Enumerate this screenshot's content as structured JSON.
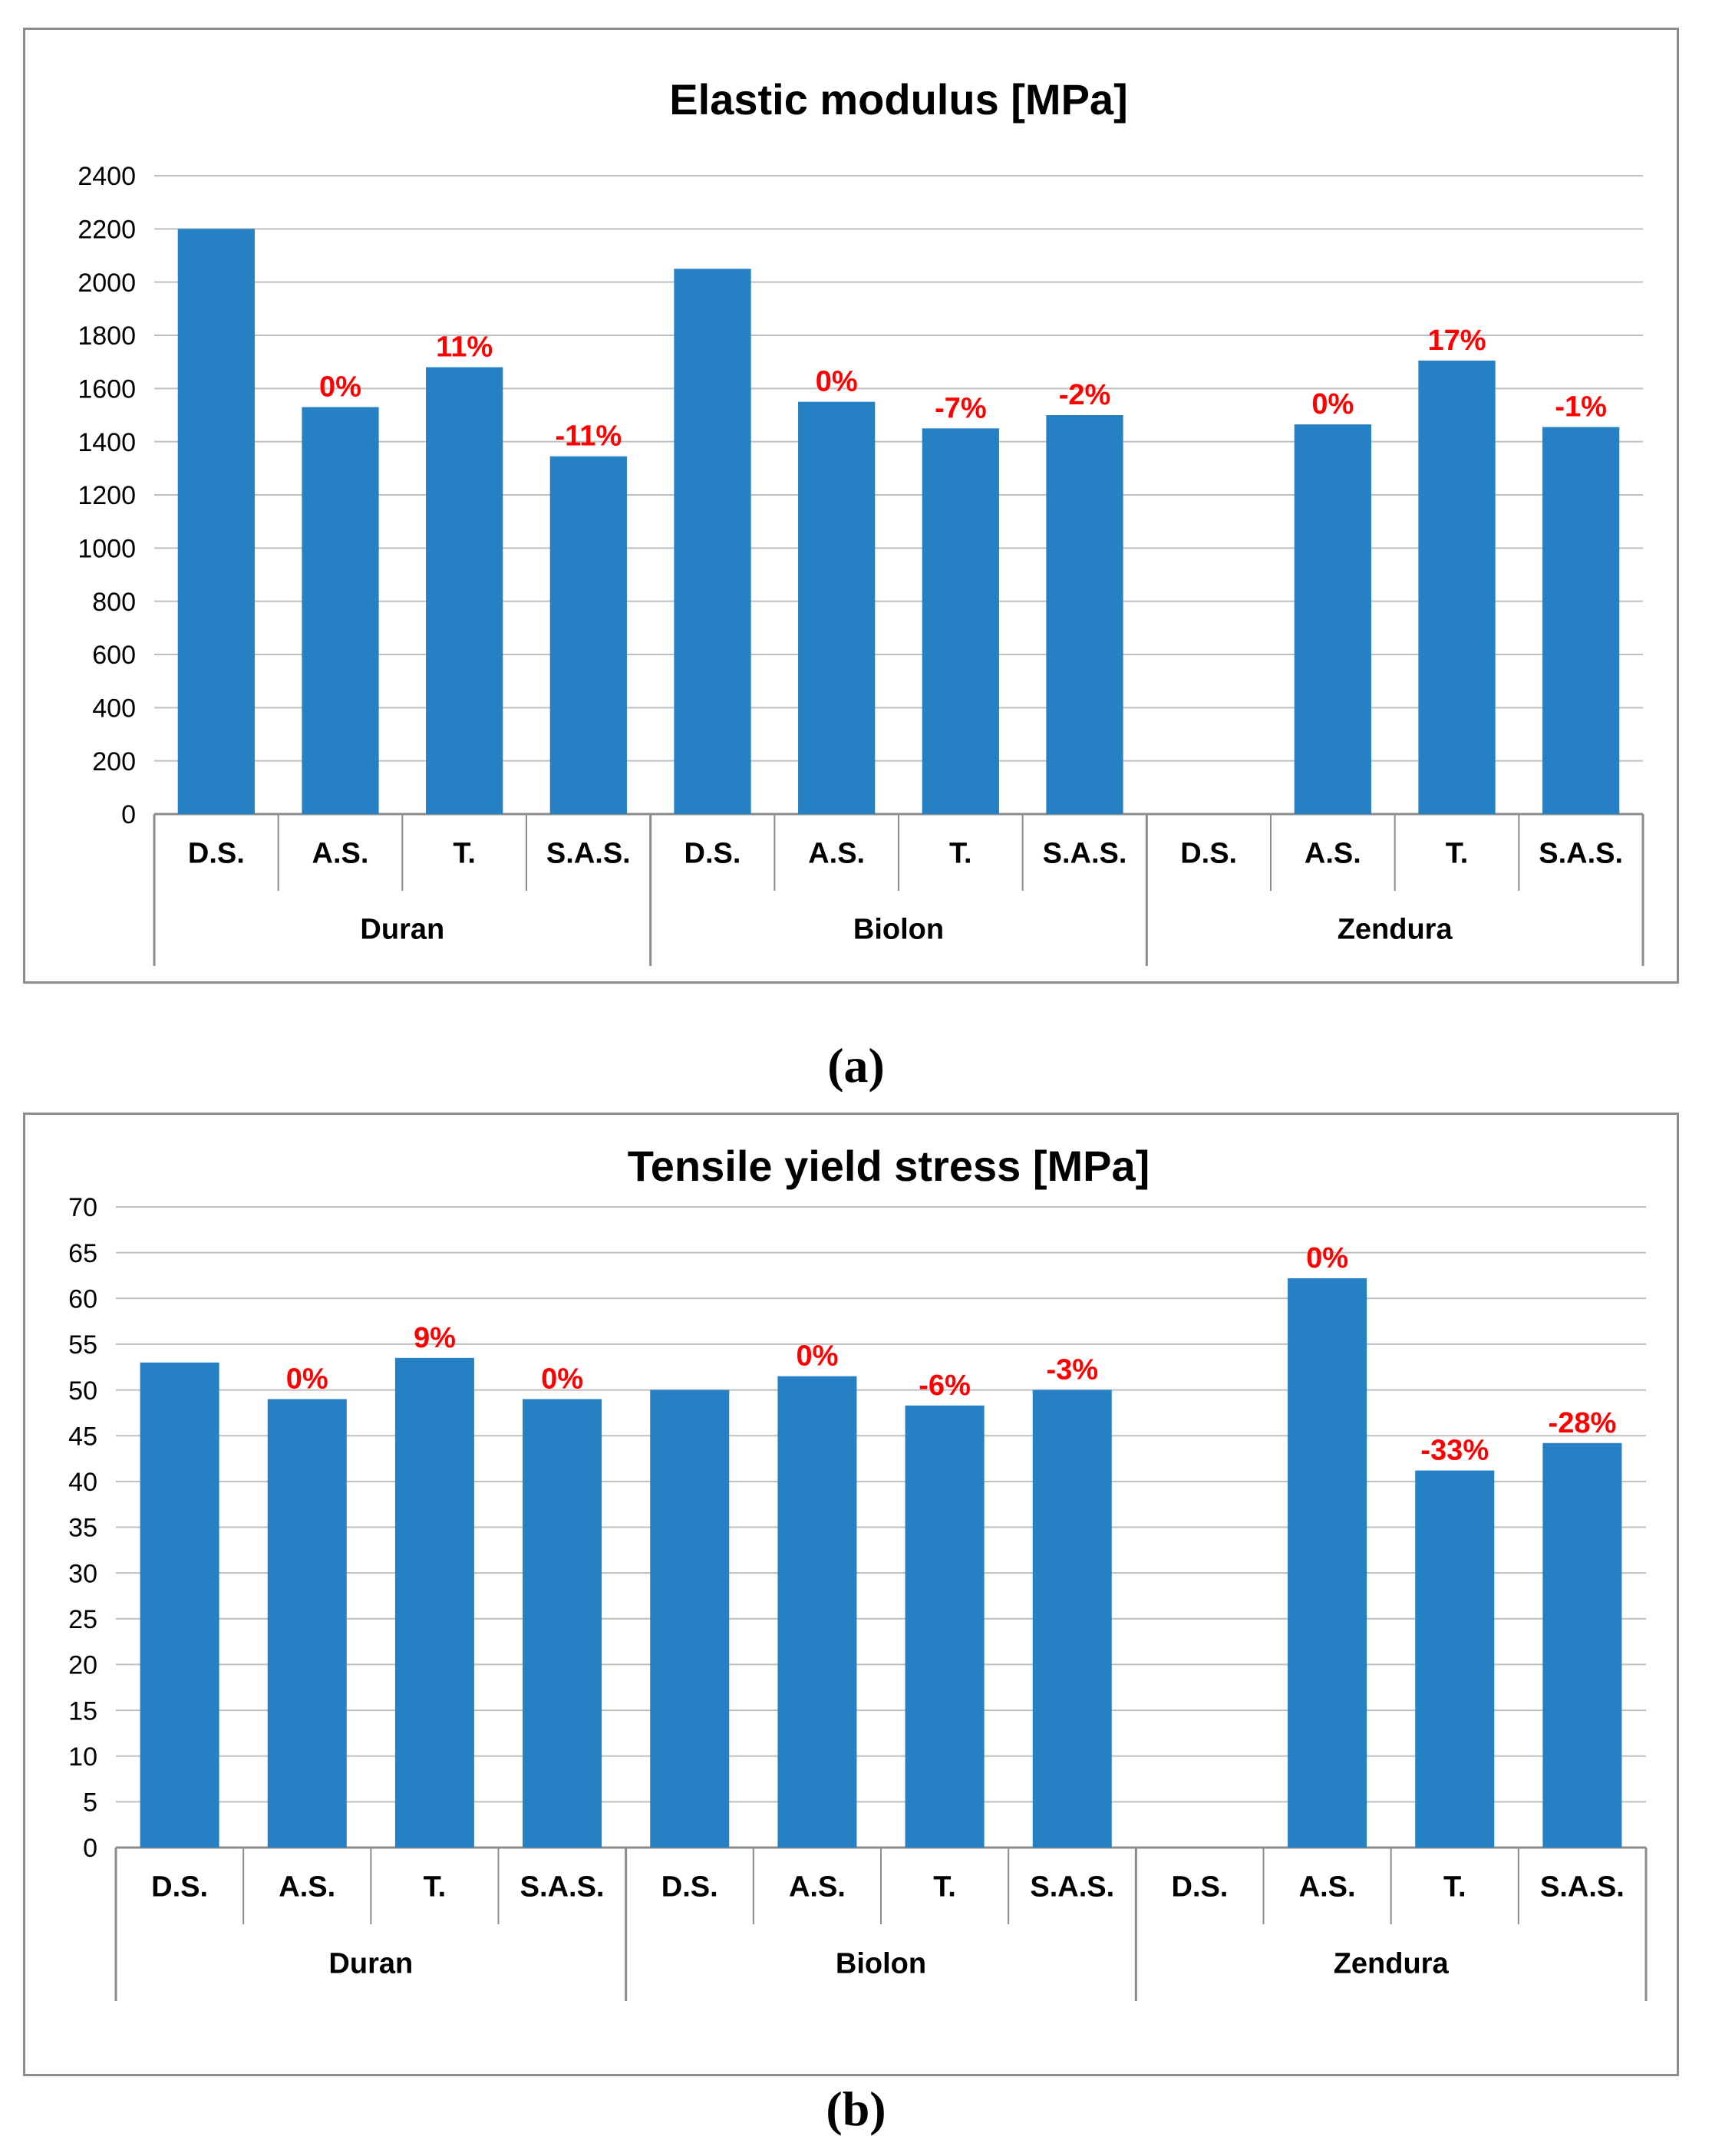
{
  "colors": {
    "bar": "#2581c4",
    "label": "#ff0000",
    "grid": "#bfbfbf",
    "axis": "#8c8c8c",
    "text": "#000000"
  },
  "chart_data": [
    {
      "type": "bar",
      "title": "Elastic modulus [MPa]",
      "caption": "(a)",
      "ylim": [
        0,
        2400
      ],
      "yticks": [
        0,
        200,
        400,
        600,
        800,
        1000,
        1200,
        1400,
        1600,
        1800,
        2000,
        2200,
        2400
      ],
      "grid": true,
      "groups": [
        {
          "name": "Duran",
          "categories": [
            "D.S.",
            "A.S.",
            "T.",
            "S.A.S."
          ],
          "values": [
            2200,
            1530,
            1680,
            1345
          ],
          "labels": [
            "",
            "0%",
            "11%",
            "-11%"
          ]
        },
        {
          "name": "Biolon",
          "categories": [
            "D.S.",
            "A.S.",
            "T.",
            "S.A.S."
          ],
          "values": [
            2050,
            1550,
            1450,
            1500
          ],
          "labels": [
            "",
            "0%",
            "-7%",
            "-2%"
          ]
        },
        {
          "name": "Zendura",
          "categories": [
            "D.S.",
            "A.S.",
            "T.",
            "S.A.S."
          ],
          "values": [
            null,
            1465,
            1705,
            1455
          ],
          "labels": [
            "",
            "0%",
            "17%",
            "-1%"
          ]
        }
      ]
    },
    {
      "type": "bar",
      "title": "Tensile yield stress [MPa]",
      "caption": "(b)",
      "ylim": [
        0,
        70
      ],
      "yticks": [
        0,
        5,
        10,
        15,
        20,
        25,
        30,
        35,
        40,
        45,
        50,
        55,
        60,
        65,
        70
      ],
      "grid": true,
      "groups": [
        {
          "name": "Duran",
          "categories": [
            "D.S.",
            "A.S.",
            "T.",
            "S.A.S."
          ],
          "values": [
            53,
            49,
            53.5,
            49
          ],
          "labels": [
            "",
            "0%",
            "9%",
            "0%"
          ]
        },
        {
          "name": "Biolon",
          "categories": [
            "D.S.",
            "A.S.",
            "T.",
            "S.A.S."
          ],
          "values": [
            50,
            51.5,
            48.3,
            50
          ],
          "labels": [
            "",
            "0%",
            "-6%",
            "-3%"
          ]
        },
        {
          "name": "Zendura",
          "categories": [
            "D.S.",
            "A.S.",
            "T.",
            "S.A.S."
          ],
          "values": [
            null,
            62.2,
            41.2,
            44.2
          ],
          "labels": [
            "",
            "0%",
            "-33%",
            "-28%"
          ]
        }
      ]
    }
  ]
}
